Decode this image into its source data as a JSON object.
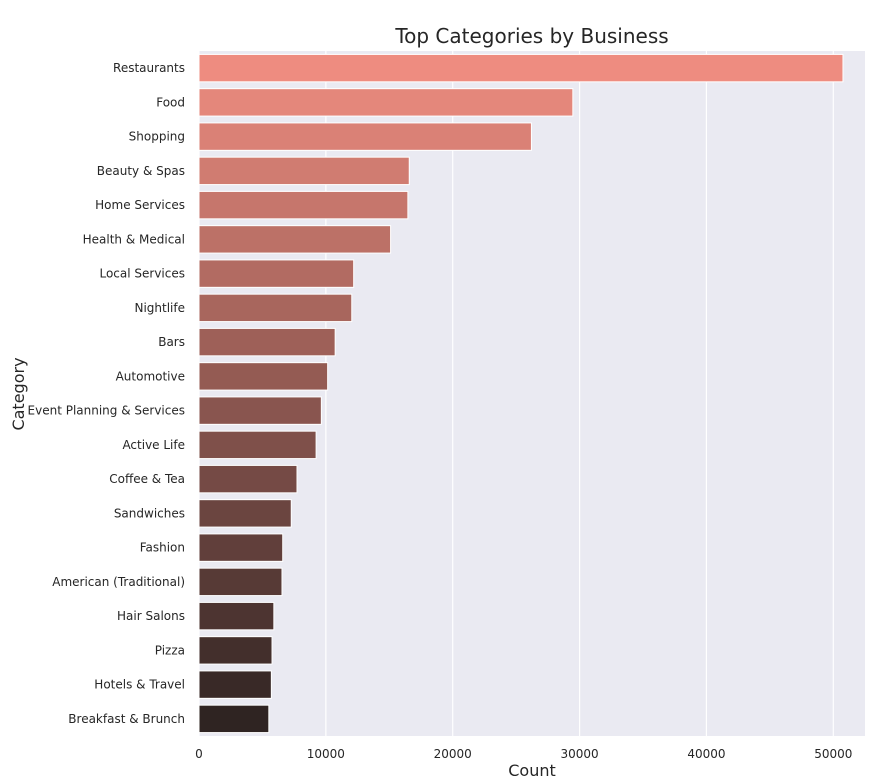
{
  "chart_data": {
    "type": "bar",
    "orientation": "horizontal",
    "title": "Top Categories by Business",
    "xlabel": "Count",
    "ylabel": "Category",
    "xlim": [
      0,
      52500
    ],
    "xticks": [
      0,
      10000,
      20000,
      30000,
      40000,
      50000
    ],
    "grid": true,
    "legend": "none",
    "palette": "dark_salmon_reversed",
    "colors": {
      "plot_background": "#EAEAF2",
      "grid": "#FFFFFF",
      "bar_start": "#EE8C80",
      "bar_end": "#2F2422"
    },
    "categories": [
      "Restaurants",
      "Food",
      "Shopping",
      "Beauty & Spas",
      "Home Services",
      "Health & Medical",
      "Local Services",
      "Nightlife",
      "Bars",
      "Automotive",
      "Event Planning & Services",
      "Active Life",
      "Coffee & Tea",
      "Sandwiches",
      "Fashion",
      "American (Traditional)",
      "Hair Salons",
      "Pizza",
      "Hotels & Travel",
      "Breakfast & Brunch"
    ],
    "values": [
      50763,
      29469,
      26205,
      16574,
      16465,
      15102,
      12192,
      12042,
      10733,
      10141,
      9644,
      9231,
      7725,
      7272,
      6599,
      6541,
      5900,
      5756,
      5703,
      5505
    ]
  }
}
